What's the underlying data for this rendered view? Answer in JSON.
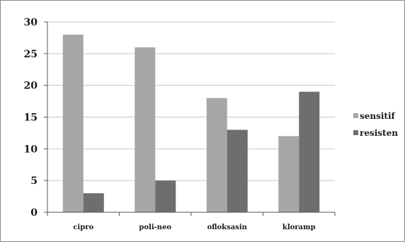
{
  "chart_data": {
    "type": "bar",
    "categories": [
      "cipro",
      "poli-neo",
      "ofloksasin",
      "kloramp"
    ],
    "series": [
      {
        "name": "sensitif",
        "values": [
          28,
          26,
          18,
          12
        ],
        "color": "#a6a6a6"
      },
      {
        "name": "resisten",
        "values": [
          3,
          5,
          13,
          19
        ],
        "color": "#6e6e6e"
      }
    ],
    "ylim": [
      0,
      30
    ],
    "yticks": [
      0,
      5,
      10,
      15,
      20,
      25,
      30
    ],
    "grid": true,
    "legend_position": "right",
    "title": "",
    "xlabel": "",
    "ylabel": ""
  }
}
